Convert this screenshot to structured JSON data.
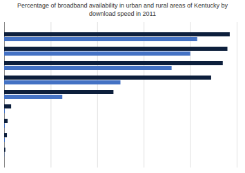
{
  "chart_data": {
    "type": "bar",
    "orientation": "horizontal",
    "title": "Percentage of broadband availability in urban and rural areas of Kentucky by\ndownload speed in 2011",
    "categories": [
      null,
      null,
      null,
      null,
      null,
      null,
      null,
      null,
      null
    ],
    "series": [
      {
        "color": "#0d1f3c",
        "values": [
          97,
          96,
          94,
          89,
          47,
          3,
          1.5,
          1.2,
          0.5
        ]
      },
      {
        "color": "#4472c4",
        "values": [
          83,
          80,
          72,
          50,
          25,
          0.3,
          0.3,
          0.3,
          0.1
        ]
      }
    ],
    "xlim": [
      0,
      100
    ],
    "xticks": [
      20,
      40,
      60,
      80,
      100
    ],
    "grid": true,
    "tick_labels": false
  }
}
